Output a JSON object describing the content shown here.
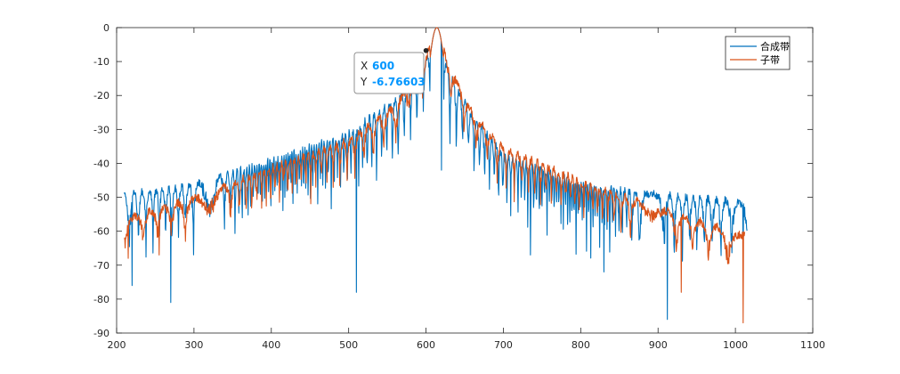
{
  "chart_data": {
    "type": "line",
    "title": "",
    "xlabel": "",
    "ylabel": "",
    "xlim": [
      200,
      1100
    ],
    "ylim": [
      -90,
      0
    ],
    "xticks": [
      "200",
      "300",
      "400",
      "500",
      "600",
      "700",
      "800",
      "900",
      "1000",
      "1100"
    ],
    "yticks": [
      "0",
      "-10",
      "-20",
      "-30",
      "-40",
      "-50",
      "-60",
      "-70",
      "-80",
      "-90"
    ],
    "grid": false,
    "legend_position": "top-right",
    "series": [
      {
        "name": "合成带",
        "color": "#0072BD",
        "x_start": 210,
        "x_end": 1015,
        "peak_x": 614,
        "envelope": [
          [
            210,
            -48
          ],
          [
            300,
            -45
          ],
          [
            400,
            -38
          ],
          [
            500,
            -30
          ],
          [
            560,
            -20
          ],
          [
            600,
            -8
          ],
          [
            614,
            0
          ],
          [
            630,
            -12
          ],
          [
            660,
            -25
          ],
          [
            700,
            -36
          ],
          [
            800,
            -45
          ],
          [
            900,
            -48
          ],
          [
            1015,
            -50
          ]
        ],
        "min_points": [
          [
            220,
            -76
          ],
          [
            270,
            -81
          ],
          [
            510,
            -78
          ],
          [
            620,
            -42
          ],
          [
            735,
            -67
          ],
          [
            830,
            -72
          ],
          [
            912,
            -86
          ],
          [
            1010,
            -70
          ]
        ]
      },
      {
        "name": "子带",
        "color": "#D95319",
        "x_start": 210,
        "x_end": 1012,
        "peak_x": 614,
        "envelope": [
          [
            210,
            -55
          ],
          [
            300,
            -49
          ],
          [
            400,
            -40
          ],
          [
            500,
            -32
          ],
          [
            560,
            -22
          ],
          [
            600,
            -7
          ],
          [
            614,
            0
          ],
          [
            630,
            -10
          ],
          [
            660,
            -24
          ],
          [
            700,
            -34
          ],
          [
            800,
            -44
          ],
          [
            900,
            -52
          ],
          [
            1012,
            -60
          ]
        ],
        "min_points": [
          [
            215,
            -68
          ],
          [
            255,
            -67
          ],
          [
            930,
            -78
          ],
          [
            1010,
            -87
          ]
        ]
      }
    ],
    "datatip": {
      "x_label": "X",
      "x_value": "600",
      "y_label": "Y",
      "y_value": "-6.76603",
      "x": 600,
      "y": -6.76603
    }
  }
}
